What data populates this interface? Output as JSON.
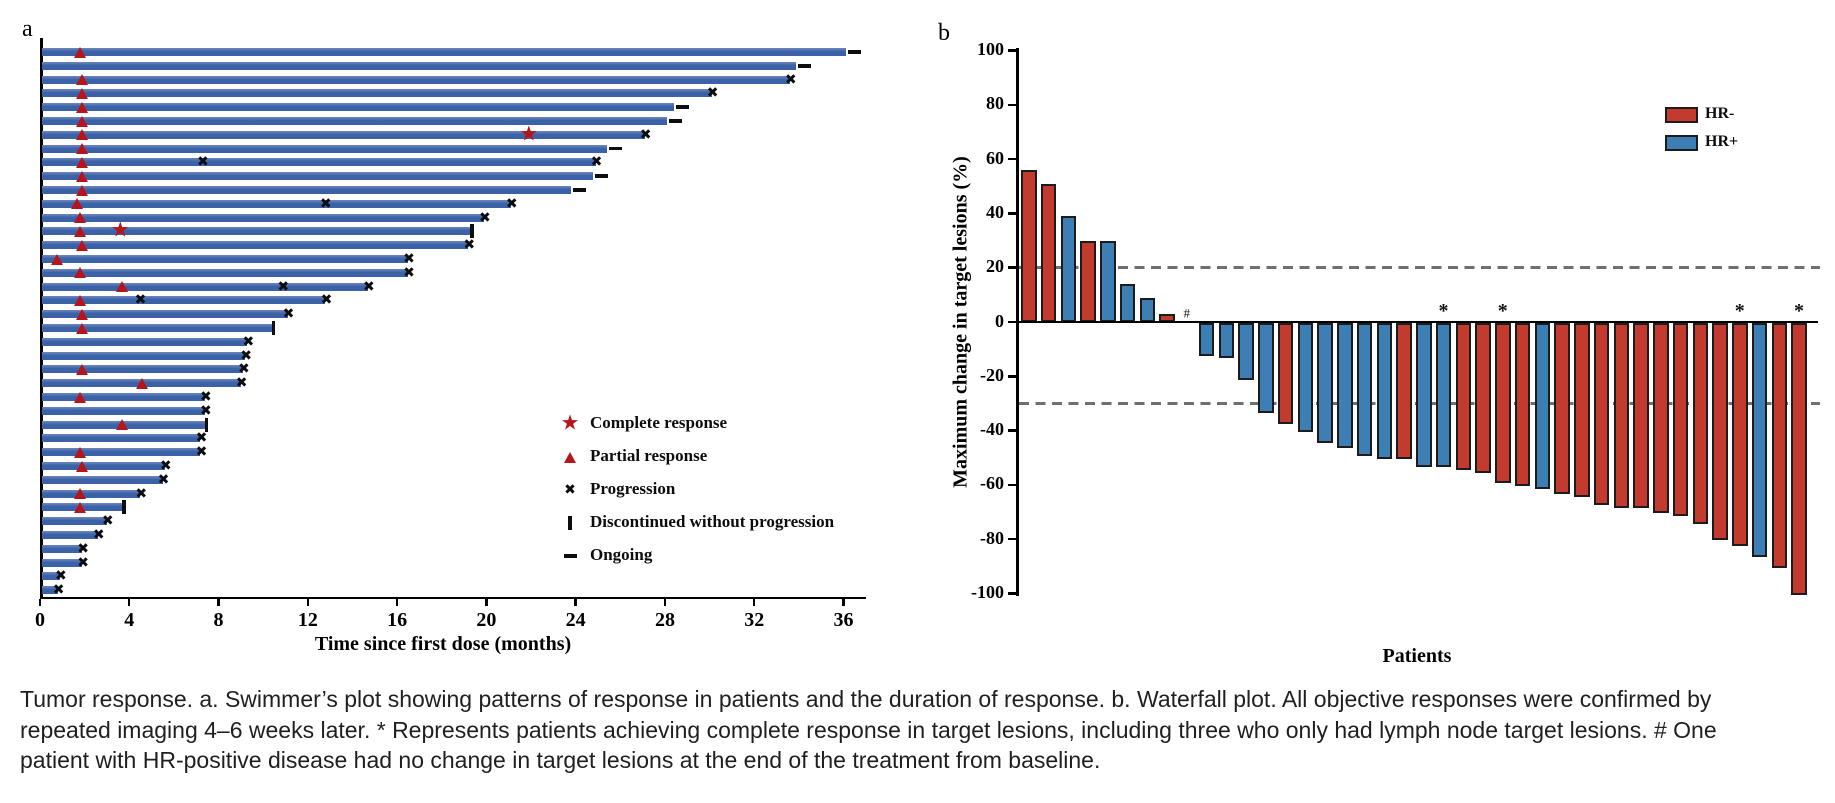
{
  "caption": "Tumor response. a. Swimmer’s plot showing patterns of response in patients and the duration of response. b. Waterfall plot. All objective responses were confirmed by repeated imaging 4–6 weeks later. * Represents patients achieving complete response in target lesions, including three who only had lymph node target lesions. # One patient with HR-positive disease had no change in target lesions at the end of the treatment from baseline.",
  "colors": {
    "swimmer_bar": "#3b61a6",
    "swimmer_bar_light": "#6e87bf",
    "hr_neg": "#c23b2e",
    "hr_pos": "#3d7eb4",
    "marker_red": "#b5151b",
    "outline": "#1c1c1c",
    "dashed_line": "#6f6f6f",
    "axis_black": "#000000"
  },
  "chart_data": [
    {
      "type": "bar",
      "panel_label": "a",
      "subtype": "swimmer",
      "orientation": "horizontal",
      "xlabel": "Time since first dose (months)",
      "xlim": [
        0,
        37
      ],
      "x_ticks": [
        0,
        4,
        8,
        12,
        16,
        20,
        24,
        28,
        32,
        36
      ],
      "legend": [
        {
          "marker": "star",
          "label": "Complete response"
        },
        {
          "marker": "triangle",
          "label": "Partial response"
        },
        {
          "marker": "x",
          "label": "Progression"
        },
        {
          "marker": "vbar",
          "label": "Discontinued without progression"
        },
        {
          "marker": "dash",
          "label": "Ongoing"
        }
      ],
      "patients": [
        {
          "months": 36.0,
          "end": "ongoing",
          "pr": 1.8
        },
        {
          "months": 33.8,
          "end": "ongoing"
        },
        {
          "months": 33.5,
          "end": "progression",
          "pr": 1.9
        },
        {
          "months": 30.0,
          "end": "progression",
          "pr": 1.9
        },
        {
          "months": 28.3,
          "end": "ongoing",
          "pr": 1.9
        },
        {
          "months": 28.0,
          "end": "ongoing",
          "pr": 1.9
        },
        {
          "months": 27.0,
          "end": "progression",
          "pr": 1.9,
          "cr": 21.9
        },
        {
          "months": 25.3,
          "end": "ongoing",
          "pr": 1.9
        },
        {
          "months": 24.8,
          "end": "progression",
          "pr": 1.9,
          "x_marks": [
            7.3
          ]
        },
        {
          "months": 24.7,
          "end": "ongoing",
          "pr": 1.9
        },
        {
          "months": 23.7,
          "end": "ongoing",
          "pr": 1.9
        },
        {
          "months": 21.0,
          "end": "progression",
          "pr": 1.7,
          "x_marks": [
            12.8
          ]
        },
        {
          "months": 19.8,
          "end": "progression",
          "pr": 1.8
        },
        {
          "months": 19.2,
          "end": "discontinued",
          "pr": 1.8,
          "cr": 3.6
        },
        {
          "months": 19.1,
          "end": "progression",
          "pr": 1.9
        },
        {
          "months": 16.4,
          "end": "progression",
          "pr": 0.8
        },
        {
          "months": 16.4,
          "end": "progression",
          "pr": 1.8
        },
        {
          "months": 14.6,
          "end": "progression",
          "pr": 3.7,
          "x_marks": [
            10.9
          ]
        },
        {
          "months": 12.7,
          "end": "progression",
          "pr": 1.8,
          "x_marks": [
            4.5
          ]
        },
        {
          "months": 11.0,
          "end": "progression",
          "pr": 1.9
        },
        {
          "months": 10.3,
          "end": "discontinued",
          "pr": 1.9
        },
        {
          "months": 9.2,
          "end": "progression"
        },
        {
          "months": 9.1,
          "end": "progression"
        },
        {
          "months": 9.0,
          "end": "progression",
          "pr": 1.9
        },
        {
          "months": 8.9,
          "end": "progression",
          "pr": 4.6
        },
        {
          "months": 7.3,
          "end": "progression",
          "pr": 1.8
        },
        {
          "months": 7.3,
          "end": "progression"
        },
        {
          "months": 7.3,
          "end": "discontinued",
          "pr": 3.7
        },
        {
          "months": 7.1,
          "end": "progression"
        },
        {
          "months": 7.1,
          "end": "progression",
          "pr": 1.8
        },
        {
          "months": 5.5,
          "end": "progression",
          "pr": 1.9
        },
        {
          "months": 5.4,
          "end": "progression"
        },
        {
          "months": 4.4,
          "end": "progression",
          "pr": 1.8
        },
        {
          "months": 3.6,
          "end": "discontinued",
          "pr": 1.8
        },
        {
          "months": 2.9,
          "end": "progression"
        },
        {
          "months": 2.5,
          "end": "progression"
        },
        {
          "months": 1.8,
          "end": "progression"
        },
        {
          "months": 1.8,
          "end": "progression"
        },
        {
          "months": 0.8,
          "end": "progression"
        },
        {
          "months": 0.7,
          "end": "progression"
        }
      ]
    },
    {
      "type": "bar",
      "panel_label": "b",
      "subtype": "waterfall",
      "xlabel": "Patients",
      "ylabel": "Maximum change in target lesions (%)",
      "ylim": [
        -100,
        100
      ],
      "y_ticks": [
        100,
        80,
        60,
        40,
        20,
        0,
        -20,
        -40,
        -60,
        -80,
        -100
      ],
      "reference_lines": [
        20,
        -30
      ],
      "legend": [
        {
          "label": "HR-",
          "group": "HR-",
          "color": "#c23b2e"
        },
        {
          "label": "HR+",
          "group": "HR+",
          "color": "#3d7eb4"
        }
      ],
      "patients": [
        {
          "change": 56,
          "group": "HR-"
        },
        {
          "change": 51,
          "group": "HR-"
        },
        {
          "change": 39,
          "group": "HR+"
        },
        {
          "change": 30,
          "group": "HR-"
        },
        {
          "change": 30,
          "group": "HR+"
        },
        {
          "change": 14,
          "group": "HR+"
        },
        {
          "change": 9,
          "group": "HR+"
        },
        {
          "change": 3,
          "group": "HR-"
        },
        {
          "change": 0,
          "group": "HR+",
          "mark": "#"
        },
        {
          "change": -12,
          "group": "HR+"
        },
        {
          "change": -13,
          "group": "HR+"
        },
        {
          "change": -21,
          "group": "HR+"
        },
        {
          "change": -33,
          "group": "HR+"
        },
        {
          "change": -37,
          "group": "HR-"
        },
        {
          "change": -40,
          "group": "HR+"
        },
        {
          "change": -44,
          "group": "HR+"
        },
        {
          "change": -46,
          "group": "HR+"
        },
        {
          "change": -49,
          "group": "HR+"
        },
        {
          "change": -50,
          "group": "HR+"
        },
        {
          "change": -50,
          "group": "HR-"
        },
        {
          "change": -53,
          "group": "HR+"
        },
        {
          "change": -53,
          "group": "HR+",
          "mark": "*"
        },
        {
          "change": -54,
          "group": "HR-"
        },
        {
          "change": -55,
          "group": "HR-"
        },
        {
          "change": -59,
          "group": "HR-",
          "mark": "*"
        },
        {
          "change": -60,
          "group": "HR-"
        },
        {
          "change": -61,
          "group": "HR+"
        },
        {
          "change": -63,
          "group": "HR-"
        },
        {
          "change": -64,
          "group": "HR-"
        },
        {
          "change": -67,
          "group": "HR-"
        },
        {
          "change": -68,
          "group": "HR-"
        },
        {
          "change": -68,
          "group": "HR-"
        },
        {
          "change": -70,
          "group": "HR-"
        },
        {
          "change": -71,
          "group": "HR-"
        },
        {
          "change": -74,
          "group": "HR-"
        },
        {
          "change": -80,
          "group": "HR-"
        },
        {
          "change": -82,
          "group": "HR-",
          "mark": "*"
        },
        {
          "change": -86,
          "group": "HR+"
        },
        {
          "change": -90,
          "group": "HR-"
        },
        {
          "change": -100,
          "group": "HR-",
          "mark": "*"
        }
      ]
    }
  ]
}
